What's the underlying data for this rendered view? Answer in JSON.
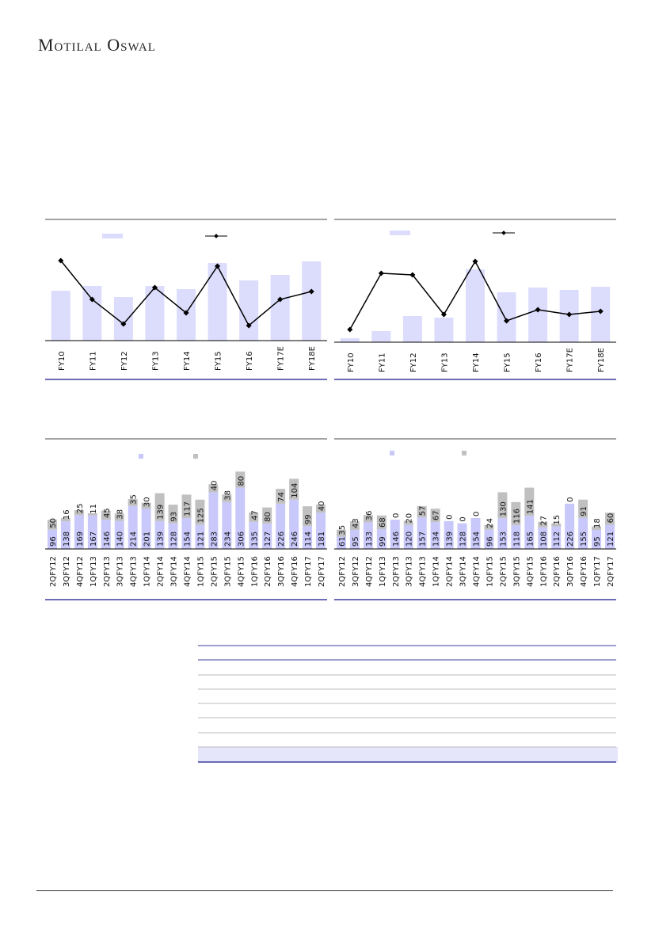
{
  "header": {
    "brand": "Motilal Oswal"
  },
  "colors": {
    "bar": "#dcdcfc",
    "bar_q": "#c8c8fa",
    "stack": "#c0c0c0",
    "line": "#000000",
    "rule": "#3d3d9e"
  },
  "chart_data": [
    {
      "type": "bar+line",
      "categories": [
        "FY10",
        "FY11",
        "FY12",
        "FY13",
        "FY14",
        "FY15",
        "FY16",
        "FY17E",
        "FY18E"
      ],
      "series": [
        {
          "kind": "bar",
          "values": [
            63,
            69,
            55,
            69,
            65,
            98,
            76,
            83,
            100
          ]
        },
        {
          "kind": "line",
          "values": [
            101,
            52,
            21,
            67,
            35,
            94,
            19,
            52,
            62
          ]
        }
      ],
      "note_scale": "relative, no axis printed"
    },
    {
      "type": "bar+line",
      "categories": [
        "FY10",
        "FY11",
        "FY12",
        "FY13",
        "FY14",
        "FY15",
        "FY16",
        "FY17E",
        "FY18E"
      ],
      "series": [
        {
          "kind": "bar",
          "values": [
            5,
            14,
            33,
            31,
            92,
            63,
            69,
            66,
            70
          ]
        },
        {
          "kind": "line",
          "values": [
            16,
            87,
            85,
            35,
            102,
            27,
            41,
            35,
            39
          ]
        }
      ],
      "note_scale": "relative, no axis printed"
    },
    {
      "type": "stacked-bar",
      "categories": [
        "2QFY12",
        "3QFY12",
        "4QFY12",
        "1QFY13",
        "2QFY13",
        "3QFY13",
        "4QFY13",
        "1QFY14",
        "2QFY14",
        "3QFY14",
        "4QFY14",
        "1QFY15",
        "2QFY15",
        "3QFY15",
        "4QFY15",
        "1QFY16",
        "2QFY16",
        "3QFY16",
        "4QFY16",
        "1QFY17",
        "2QFY17"
      ],
      "series": [
        {
          "values": [
            96,
            138,
            169,
            167,
            146,
            140,
            214,
            201,
            139,
            128,
            154,
            121,
            283,
            234,
            306,
            135,
            127,
            226,
            246,
            114,
            181
          ]
        },
        {
          "values": [
            50,
            16,
            25,
            11,
            45,
            38,
            35,
            30,
            139,
            93,
            117,
            125,
            40,
            38,
            80,
            47,
            80,
            74,
            104,
            99,
            40
          ]
        }
      ]
    },
    {
      "type": "stacked-bar",
      "categories": [
        "2QFY12",
        "3QFY12",
        "4QFY12",
        "1QFY13",
        "2QFY13",
        "3QFY13",
        "4QFY13",
        "1QFY14",
        "2QFY14",
        "3QFY14",
        "4QFY14",
        "1QFY15",
        "2QFY15",
        "3QFY15",
        "4QFY15",
        "1QFY16",
        "2QFY16",
        "3QFY16",
        "4QFY16",
        "1QFY17",
        "2QFY17"
      ],
      "series": [
        {
          "values": [
            61,
            95,
            133,
            99,
            146,
            120,
            157,
            134,
            139,
            128,
            154,
            96,
            153,
            118,
            165,
            108,
            112,
            226,
            155,
            95,
            121
          ]
        },
        {
          "values": [
            35,
            43,
            36,
            68,
            0,
            20,
            57,
            67,
            0,
            0,
            0,
            24,
            130,
            116,
            141,
            27,
            15,
            0,
            91,
            18,
            60
          ]
        }
      ]
    }
  ]
}
